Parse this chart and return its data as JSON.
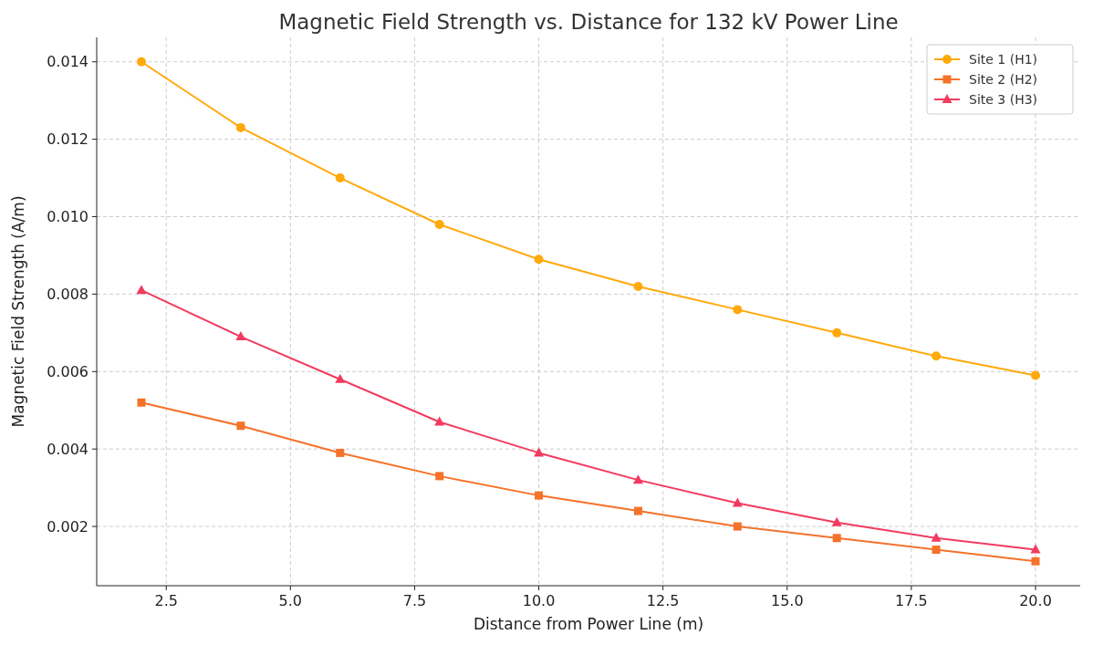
{
  "chart_data": {
    "type": "line",
    "title": "Magnetic Field Strength vs. Distance for 132 kV Power Line",
    "xlabel": "Distance from Power Line (m)",
    "ylabel": "Magnetic Field Strength (A/m)",
    "x": [
      2,
      4,
      6,
      8,
      10,
      12,
      14,
      16,
      18,
      20
    ],
    "series": [
      {
        "name": "Site 1 (H1)",
        "color": "#ffa90a",
        "marker": "circle",
        "values": [
          0.014,
          0.0123,
          0.011,
          0.0098,
          0.0089,
          0.0082,
          0.0076,
          0.007,
          0.0064,
          0.0059
        ]
      },
      {
        "name": "Site 2 (H2)",
        "color": "#f5722a",
        "marker": "square",
        "values": [
          0.0052,
          0.0046,
          0.0039,
          0.0033,
          0.0028,
          0.0024,
          0.002,
          0.0017,
          0.0014,
          0.0011
        ]
      },
      {
        "name": "Site 3 (H3)",
        "color": "#f23b60",
        "marker": "triangle",
        "values": [
          0.0081,
          0.0069,
          0.0058,
          0.0047,
          0.0039,
          0.0032,
          0.0026,
          0.0021,
          0.0017,
          0.0014
        ]
      }
    ],
    "xlim": [
      1.1,
      20.9
    ],
    "ylim": [
      0.00047,
      0.01463
    ],
    "xticks": [
      {
        "value": 2.5,
        "label": "2.5"
      },
      {
        "value": 5,
        "label": "5.0"
      },
      {
        "value": 7.5,
        "label": "7.5"
      },
      {
        "value": 10,
        "label": "10.0"
      },
      {
        "value": 12.5,
        "label": "12.5"
      },
      {
        "value": 15,
        "label": "15.0"
      },
      {
        "value": 17.5,
        "label": "17.5"
      },
      {
        "value": 20,
        "label": "20.0"
      }
    ],
    "yticks": [
      {
        "value": 0.002,
        "label": "0.002"
      },
      {
        "value": 0.004,
        "label": "0.004"
      },
      {
        "value": 0.006,
        "label": "0.006"
      },
      {
        "value": 0.008,
        "label": "0.008"
      },
      {
        "value": 0.01,
        "label": "0.010"
      },
      {
        "value": 0.012,
        "label": "0.012"
      },
      {
        "value": 0.014,
        "label": "0.014"
      }
    ],
    "grid": true,
    "legend": "top right",
    "line_style": "solid"
  }
}
